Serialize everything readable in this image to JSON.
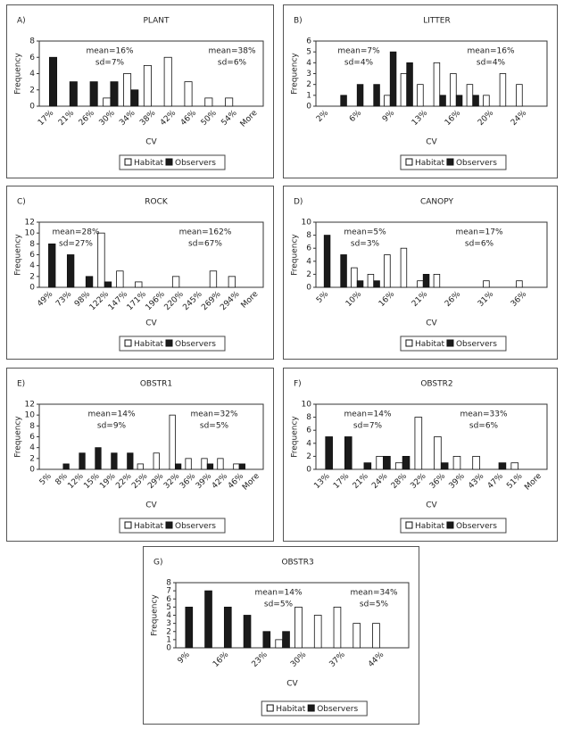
{
  "chart_data": [
    {
      "type": "bar",
      "panel": "A)",
      "title": "PLANT",
      "x_label": "CV",
      "y_label": "Frequency",
      "categories": [
        "17%",
        "21%",
        "26%",
        "30%",
        "34%",
        "38%",
        "42%",
        "46%",
        "50%",
        "54%",
        "More"
      ],
      "series": [
        {
          "name": "Habitat",
          "color": "#ffffff",
          "values": [
            0,
            0,
            0,
            1,
            4,
            5,
            6,
            3,
            1,
            1,
            0
          ]
        },
        {
          "name": "Observers",
          "color": "#1a1a1a",
          "values": [
            6,
            3,
            3,
            3,
            2,
            0,
            0,
            0,
            0,
            0,
            0
          ]
        }
      ],
      "ylim": [
        0,
        8
      ],
      "yticks": [
        0,
        2,
        4,
        6,
        8
      ],
      "annotations": [
        "mean=16%",
        "sd=7%",
        "mean=38%",
        "sd=6%"
      ]
    },
    {
      "type": "bar",
      "panel": "B)",
      "title": "LITTER",
      "x_label": "CV",
      "y_label": "Frequency",
      "categories": [
        "2%",
        null,
        "6%",
        null,
        "9%",
        null,
        "13%",
        null,
        "16%",
        null,
        "20%",
        null,
        "24%",
        null
      ],
      "series": [
        {
          "name": "Habitat",
          "color": "#ffffff",
          "values": [
            0,
            0,
            0,
            0,
            1,
            3,
            2,
            4,
            3,
            2,
            1,
            3,
            2,
            0
          ]
        },
        {
          "name": "Observers",
          "color": "#1a1a1a",
          "values": [
            0,
            1,
            2,
            2,
            5,
            4,
            0,
            1,
            1,
            1,
            0,
            0,
            0,
            0
          ]
        }
      ],
      "ylim": [
        0,
        6
      ],
      "yticks": [
        0,
        1,
        2,
        3,
        4,
        5,
        6
      ],
      "annotations": [
        "mean=7%",
        "sd=4%",
        "mean=16%",
        "sd=4%"
      ]
    },
    {
      "type": "bar",
      "panel": "C)",
      "title": "ROCK",
      "x_label": "CV",
      "y_label": "Frequency",
      "categories": [
        "49%",
        "73%",
        "98%",
        "122%",
        "147%",
        "171%",
        "196%",
        "220%",
        "245%",
        "269%",
        "294%",
        "More"
      ],
      "series": [
        {
          "name": "Habitat",
          "color": "#ffffff",
          "values": [
            0,
            0,
            0,
            10,
            3,
            1,
            0,
            2,
            0,
            3,
            2,
            0
          ]
        },
        {
          "name": "Observers",
          "color": "#1a1a1a",
          "values": [
            8,
            6,
            2,
            1,
            0,
            0,
            0,
            0,
            0,
            0,
            0,
            0
          ]
        }
      ],
      "ylim": [
        0,
        12
      ],
      "yticks": [
        0,
        2,
        4,
        6,
        8,
        10,
        12
      ],
      "annotations": [
        "mean=28%",
        "sd=27%",
        "mean=162%",
        "sd=67%"
      ]
    },
    {
      "type": "bar",
      "panel": "D)",
      "title": "CANOPY",
      "x_label": "CV",
      "y_label": "Frequency",
      "categories": [
        "5%",
        null,
        "10%",
        null,
        "16%",
        null,
        "21%",
        null,
        "26%",
        null,
        "31%",
        null,
        "36%",
        null
      ],
      "series": [
        {
          "name": "Habitat",
          "color": "#ffffff",
          "values": [
            0,
            0,
            3,
            2,
            5,
            6,
            1,
            2,
            0,
            0,
            1,
            0,
            1,
            0
          ]
        },
        {
          "name": "Observers",
          "color": "#1a1a1a",
          "values": [
            8,
            5,
            1,
            1,
            0,
            0,
            2,
            0,
            0,
            0,
            0,
            0,
            0,
            0
          ]
        }
      ],
      "ylim": [
        0,
        10
      ],
      "yticks": [
        0,
        2,
        4,
        6,
        8,
        10
      ],
      "annotations": [
        "mean=5%",
        "sd=3%",
        "mean=17%",
        "sd=6%"
      ]
    },
    {
      "type": "bar",
      "panel": "E)",
      "title": "OBSTR1",
      "x_label": "CV",
      "y_label": "Frequency",
      "categories": [
        "5%",
        "8%",
        "12%",
        "15%",
        "19%",
        "22%",
        "25%",
        "29%",
        "32%",
        "36%",
        "39%",
        "42%",
        "46%",
        "More"
      ],
      "series": [
        {
          "name": "Habitat",
          "color": "#ffffff",
          "values": [
            0,
            0,
            0,
            0,
            0,
            0,
            1,
            3,
            10,
            2,
            2,
            2,
            1,
            0
          ]
        },
        {
          "name": "Observers",
          "color": "#1a1a1a",
          "values": [
            0,
            1,
            3,
            4,
            3,
            3,
            0,
            0,
            1,
            0,
            1,
            0,
            1,
            0
          ]
        }
      ],
      "ylim": [
        0,
        12
      ],
      "yticks": [
        0,
        2,
        4,
        6,
        8,
        10,
        12
      ],
      "annotations": [
        "mean=14%",
        "sd=9%",
        "mean=32%",
        "sd=5%"
      ]
    },
    {
      "type": "bar",
      "panel": "F)",
      "title": "OBSTR2",
      "x_label": "CV",
      "y_label": "Frequency",
      "categories": [
        "13%",
        "17%",
        "21%",
        "24%",
        "28%",
        "32%",
        "36%",
        "39%",
        "43%",
        "47%",
        "51%",
        "More"
      ],
      "series": [
        {
          "name": "Habitat",
          "color": "#ffffff",
          "values": [
            0,
            0,
            0,
            2,
            1,
            8,
            5,
            2,
            2,
            0,
            1,
            0
          ]
        },
        {
          "name": "Observers",
          "color": "#1a1a1a",
          "values": [
            5,
            5,
            1,
            2,
            2,
            0,
            1,
            0,
            0,
            1,
            0,
            0
          ]
        }
      ],
      "ylim": [
        0,
        10
      ],
      "yticks": [
        0,
        2,
        4,
        6,
        8,
        10
      ],
      "annotations": [
        "mean=14%",
        "sd=7%",
        "mean=33%",
        "sd=6%"
      ]
    },
    {
      "type": "bar",
      "panel": "G)",
      "title": "OBSTR3",
      "x_label": "CV",
      "y_label": "Frequency",
      "categories": [
        "9%",
        null,
        "16%",
        null,
        "23%",
        null,
        "30%",
        null,
        "37%",
        null,
        "44%",
        null
      ],
      "series": [
        {
          "name": "Habitat",
          "color": "#ffffff",
          "values": [
            0,
            0,
            0,
            0,
            0,
            1,
            5,
            4,
            5,
            3,
            3,
            0
          ]
        },
        {
          "name": "Observers",
          "color": "#1a1a1a",
          "values": [
            5,
            7,
            5,
            4,
            2,
            2,
            0,
            0,
            0,
            0,
            0,
            0
          ]
        }
      ],
      "ylim": [
        0,
        8
      ],
      "yticks": [
        0,
        1,
        2,
        3,
        4,
        5,
        6,
        7,
        8
      ],
      "annotations": [
        "mean=14%",
        "sd=5%",
        "mean=34%",
        "sd=5%"
      ]
    }
  ]
}
